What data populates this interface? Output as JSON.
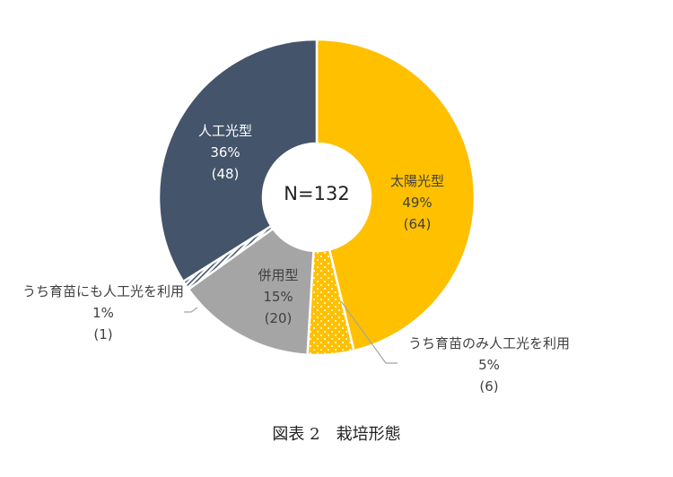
{
  "chart_data": {
    "type": "pie",
    "variant": "donut",
    "title": "",
    "center_label": "N=132",
    "caption": "図表 2　栽培形態",
    "start_angle_deg": 0,
    "direction": "clockwise",
    "slices": [
      {
        "name": "太陽光型",
        "percent": "49%",
        "count": "(64)",
        "value": 49,
        "n": 64,
        "color": "#FFC000",
        "pattern": "solid"
      },
      {
        "name": "うち育苗のみ人工光を利用",
        "percent": "5%",
        "count": "(6)",
        "value": 5,
        "n": 6,
        "color": "#FFC000",
        "pattern": "dots",
        "parent": "太陽光型"
      },
      {
        "name": "併用型",
        "percent": "15%",
        "count": "(20)",
        "value": 15,
        "n": 20,
        "color": "#A5A5A5",
        "pattern": "solid"
      },
      {
        "name": "うち育苗にも人工光を利用",
        "percent": "1%",
        "count": "(1)",
        "value": 1,
        "n": 1,
        "color": "#44546A",
        "pattern": "hatch",
        "parent": "人工光型"
      },
      {
        "name": "人工光型",
        "percent": "36%",
        "count": "(48)",
        "value": 36,
        "n": 48,
        "color": "#44546A",
        "pattern": "solid"
      }
    ],
    "legend": null
  },
  "labels": {
    "solar": {
      "name": "太陽光型",
      "pct": "49%",
      "cnt": "(64)"
    },
    "solar_sub": {
      "name": "うち育苗のみ人工光を利用",
      "pct": "5%",
      "cnt": "(6)"
    },
    "combined": {
      "name": "併用型",
      "pct": "15%",
      "cnt": "(20)"
    },
    "artificial_sub": {
      "name": "うち育苗にも人工光を利用",
      "pct": "1%",
      "cnt": "(1)"
    },
    "artificial": {
      "name": "人工光型",
      "pct": "36%",
      "cnt": "(48)"
    }
  },
  "center": "N=132",
  "caption": "図表 2　栽培形態"
}
